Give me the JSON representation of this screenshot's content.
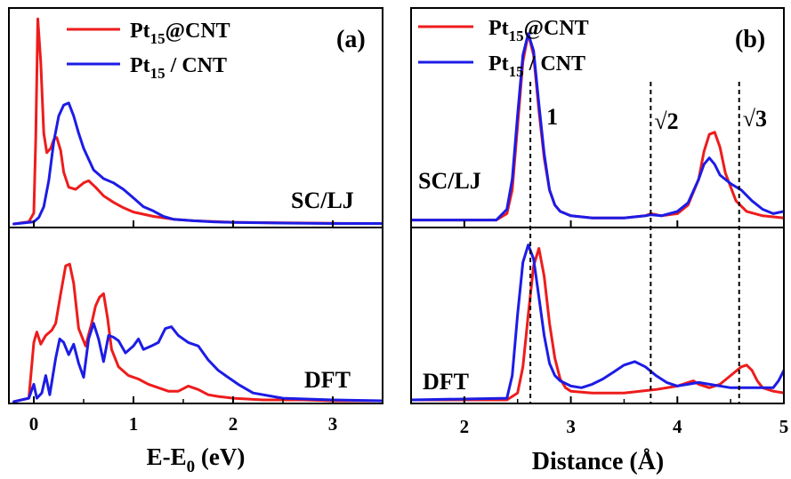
{
  "figure": {
    "colors": {
      "pt_in": "#ee1c1c",
      "pt_out": "#1c1ce6",
      "axis": "#000000"
    }
  },
  "chart_data": [
    {
      "type": "line",
      "panel": "(a)",
      "xlabel_main": "E-E",
      "xlabel_sub": "0",
      "xlabel_unit": " (eV)",
      "xlim": [
        -0.25,
        3.5
      ],
      "xticks": [
        "0",
        "1",
        "2",
        "3"
      ],
      "legend": [
        {
          "main": "Pt",
          "sub": "15",
          "rest": "@CNT",
          "color": "#ee1c1c"
        },
        {
          "main": "Pt",
          "sub": "15",
          "rest": " / CNT",
          "color": "#1c1ce6"
        }
      ],
      "subplots": [
        {
          "label": "SC/LJ",
          "ylim": [
            0,
            1.0
          ],
          "series": [
            {
              "color": "#ee1c1c",
              "x": [
                -0.2,
                -0.05,
                0,
                0.02,
                0.04,
                0.07,
                0.1,
                0.13,
                0.17,
                0.2,
                0.23,
                0.27,
                0.3,
                0.35,
                0.42,
                0.5,
                0.55,
                0.62,
                0.7,
                0.8,
                0.9,
                1.0,
                1.2,
                1.4,
                1.6,
                2.0,
                2.5,
                3.0,
                3.5
              ],
              "y": [
                0,
                0.01,
                0.05,
                0.4,
                0.95,
                0.75,
                0.42,
                0.33,
                0.35,
                0.39,
                0.4,
                0.34,
                0.24,
                0.17,
                0.16,
                0.19,
                0.2,
                0.17,
                0.13,
                0.1,
                0.075,
                0.055,
                0.035,
                0.022,
                0.015,
                0.008,
                0.005,
                0.003,
                0.002
              ]
            },
            {
              "color": "#1c1ce6",
              "x": [
                -0.2,
                0,
                0.05,
                0.1,
                0.15,
                0.2,
                0.25,
                0.3,
                0.35,
                0.4,
                0.45,
                0.5,
                0.55,
                0.6,
                0.7,
                0.8,
                0.9,
                1.0,
                1.1,
                1.15,
                1.2,
                1.3,
                1.4,
                1.6,
                1.8,
                2.0,
                2.5,
                3.0,
                3.5
              ],
              "y": [
                0,
                0.01,
                0.03,
                0.08,
                0.2,
                0.38,
                0.5,
                0.55,
                0.56,
                0.5,
                0.42,
                0.35,
                0.3,
                0.25,
                0.21,
                0.19,
                0.16,
                0.12,
                0.08,
                0.07,
                0.06,
                0.035,
                0.022,
                0.015,
                0.01,
                0.007,
                0.004,
                0.002,
                0.002
              ]
            }
          ]
        },
        {
          "label": "DFT",
          "ylim": [
            0,
            1.0
          ],
          "series": [
            {
              "color": "#ee1c1c",
              "x": [
                -0.2,
                -0.05,
                0,
                0.03,
                0.07,
                0.12,
                0.18,
                0.22,
                0.27,
                0.32,
                0.36,
                0.4,
                0.45,
                0.52,
                0.58,
                0.62,
                0.66,
                0.7,
                0.74,
                0.78,
                0.85,
                0.95,
                1.05,
                1.15,
                1.25,
                1.35,
                1.45,
                1.55,
                1.65,
                1.75,
                1.85,
                2.0,
                2.3,
                2.7,
                3.0,
                3.5
              ],
              "y": [
                0,
                0.02,
                0.34,
                0.4,
                0.33,
                0.38,
                0.41,
                0.45,
                0.62,
                0.78,
                0.79,
                0.68,
                0.42,
                0.32,
                0.45,
                0.55,
                0.6,
                0.62,
                0.48,
                0.3,
                0.2,
                0.15,
                0.13,
                0.1,
                0.08,
                0.06,
                0.06,
                0.09,
                0.07,
                0.04,
                0.03,
                0.02,
                0.01,
                0.01,
                0.005,
                0.005
              ]
            },
            {
              "color": "#1c1ce6",
              "x": [
                -0.2,
                -0.05,
                0,
                0.03,
                0.08,
                0.12,
                0.16,
                0.22,
                0.26,
                0.3,
                0.35,
                0.4,
                0.45,
                0.5,
                0.55,
                0.6,
                0.65,
                0.7,
                0.75,
                0.8,
                0.85,
                0.92,
                1.0,
                1.05,
                1.1,
                1.18,
                1.25,
                1.32,
                1.38,
                1.45,
                1.55,
                1.65,
                1.75,
                1.85,
                1.95,
                2.05,
                2.2,
                2.5,
                3.0,
                3.5
              ],
              "y": [
                0,
                0.02,
                0.1,
                0.02,
                0.05,
                0.15,
                0.04,
                0.25,
                0.36,
                0.34,
                0.27,
                0.33,
                0.22,
                0.14,
                0.36,
                0.45,
                0.36,
                0.23,
                0.38,
                0.37,
                0.35,
                0.28,
                0.32,
                0.36,
                0.3,
                0.32,
                0.34,
                0.42,
                0.43,
                0.38,
                0.34,
                0.32,
                0.24,
                0.18,
                0.14,
                0.1,
                0.05,
                0.02,
                0.01,
                0.005
              ]
            }
          ]
        }
      ]
    },
    {
      "type": "line",
      "panel": "(b)",
      "xlabel": "Distance (Å)",
      "xlim": [
        1.5,
        5.0
      ],
      "xticks": [
        "2",
        "3",
        "4",
        "5"
      ],
      "legend": [
        {
          "main": "Pt",
          "sub": "15",
          "rest": "@CNT",
          "color": "#ee1c1c"
        },
        {
          "main": "Pt",
          "sub": "15",
          "rest": " / CNT",
          "color": "#1c1ce6"
        }
      ],
      "vlines": [
        {
          "x": 2.62,
          "label": "1"
        },
        {
          "x": 3.75,
          "label": "√2"
        },
        {
          "x": 4.58,
          "label": "√3"
        }
      ],
      "subplots": [
        {
          "label": "SC/LJ",
          "ylim": [
            0,
            1.0
          ],
          "series": [
            {
              "color": "#ee1c1c",
              "x": [
                1.5,
                2.3,
                2.4,
                2.45,
                2.5,
                2.55,
                2.6,
                2.65,
                2.7,
                2.75,
                2.8,
                2.85,
                2.9,
                3.0,
                3.2,
                3.5,
                3.7,
                3.75,
                3.85,
                4.0,
                4.1,
                4.2,
                4.25,
                4.3,
                4.35,
                4.4,
                4.45,
                4.55,
                4.65,
                4.8,
                5.0
              ],
              "y": [
                0.01,
                0.01,
                0.04,
                0.15,
                0.45,
                0.75,
                0.88,
                0.78,
                0.52,
                0.3,
                0.15,
                0.08,
                0.05,
                0.03,
                0.02,
                0.02,
                0.03,
                0.04,
                0.03,
                0.04,
                0.08,
                0.2,
                0.33,
                0.41,
                0.42,
                0.35,
                0.23,
                0.1,
                0.05,
                0.03,
                0.02
              ]
            },
            {
              "color": "#1c1ce6",
              "x": [
                1.5,
                2.3,
                2.4,
                2.45,
                2.5,
                2.55,
                2.6,
                2.65,
                2.7,
                2.75,
                2.8,
                2.85,
                2.9,
                3.0,
                3.2,
                3.5,
                3.7,
                3.75,
                3.85,
                4.0,
                4.1,
                4.2,
                4.25,
                4.3,
                4.35,
                4.4,
                4.5,
                4.6,
                4.7,
                4.8,
                4.9,
                5.0
              ],
              "y": [
                0.01,
                0.01,
                0.06,
                0.2,
                0.5,
                0.78,
                0.88,
                0.8,
                0.55,
                0.32,
                0.15,
                0.08,
                0.05,
                0.03,
                0.02,
                0.02,
                0.03,
                0.035,
                0.03,
                0.05,
                0.09,
                0.2,
                0.27,
                0.3,
                0.27,
                0.22,
                0.18,
                0.15,
                0.1,
                0.06,
                0.04,
                0.05
              ]
            }
          ]
        },
        {
          "label": "DFT",
          "ylim": [
            0,
            1.0
          ],
          "series": [
            {
              "color": "#ee1c1c",
              "x": [
                1.5,
                2.4,
                2.5,
                2.55,
                2.6,
                2.65,
                2.7,
                2.75,
                2.8,
                2.85,
                2.9,
                2.95,
                3.0,
                3.2,
                3.5,
                3.8,
                4.0,
                4.1,
                4.15,
                4.2,
                4.3,
                4.4,
                4.5,
                4.6,
                4.65,
                4.7,
                4.75,
                4.8,
                4.9,
                5.0
              ],
              "y": [
                0.01,
                0.01,
                0.05,
                0.2,
                0.5,
                0.78,
                0.88,
                0.72,
                0.45,
                0.25,
                0.13,
                0.08,
                0.06,
                0.05,
                0.05,
                0.07,
                0.09,
                0.11,
                0.12,
                0.1,
                0.08,
                0.1,
                0.15,
                0.2,
                0.21,
                0.18,
                0.12,
                0.08,
                0.06,
                0.05
              ]
            },
            {
              "color": "#1c1ce6",
              "x": [
                1.5,
                2.4,
                2.45,
                2.5,
                2.55,
                2.6,
                2.65,
                2.7,
                2.75,
                2.8,
                2.85,
                2.9,
                3.0,
                3.1,
                3.2,
                3.3,
                3.4,
                3.5,
                3.6,
                3.7,
                3.8,
                3.9,
                4.0,
                4.1,
                4.2,
                4.3,
                4.5,
                4.7,
                4.8,
                4.9,
                4.95,
                5.0
              ],
              "y": [
                0.01,
                0.02,
                0.15,
                0.5,
                0.8,
                0.9,
                0.82,
                0.6,
                0.38,
                0.22,
                0.15,
                0.12,
                0.09,
                0.08,
                0.1,
                0.13,
                0.17,
                0.21,
                0.23,
                0.2,
                0.15,
                0.11,
                0.09,
                0.1,
                0.11,
                0.1,
                0.08,
                0.08,
                0.08,
                0.08,
                0.12,
                0.18
              ]
            }
          ]
        }
      ]
    }
  ]
}
